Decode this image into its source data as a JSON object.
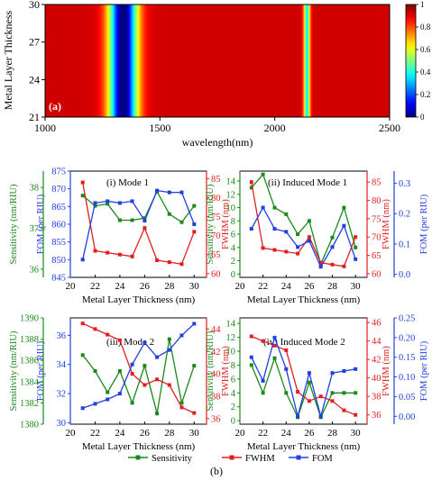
{
  "colors": {
    "sensitivity": "#1a8a1a",
    "fwhm": "#e02020",
    "fom": "#2040e0",
    "axis": "#000000"
  },
  "chart_data": [
    {
      "type": "heatmap",
      "panel_label": "(a)",
      "xlabel": "wavelength(nm)",
      "ylabel": "Metal Layer Thickness",
      "xticks": [
        "1000",
        "1500",
        "2000",
        "2500"
      ],
      "yticks": [
        "21",
        "24",
        "27",
        "30"
      ],
      "xlim": [
        1000,
        2500
      ],
      "ylim": [
        21,
        30
      ],
      "colorbar": {
        "ticks": [
          "1",
          "0.8",
          "0.6",
          "0.4",
          "0.2",
          "0"
        ],
        "range": [
          0,
          1
        ],
        "colormap": "jet"
      },
      "dips": [
        {
          "center_nm": 1340,
          "width_nm": 90,
          "depth": 0.95
        },
        {
          "center_nm": 2140,
          "width_nm": 20,
          "depth": 0.55
        }
      ]
    },
    {
      "type": "line",
      "panel_label": "(i) Mode 1",
      "xlabel": "Metal Layer Thickness (nm)",
      "x": [
        21,
        22,
        23,
        24,
        25,
        26,
        27,
        28,
        29,
        30
      ],
      "xlim": [
        20,
        31
      ],
      "xticks": [
        "20",
        "22",
        "24",
        "26",
        "28",
        "30"
      ],
      "axes": {
        "left_outer": {
          "label": "FOM (per RIU)",
          "series": "FOM",
          "range": [
            845,
            875
          ],
          "ticks": [
            "845",
            "850",
            "855",
            "860",
            "865",
            "870",
            "875"
          ]
        },
        "left_inner": {
          "label": "Sensitivity (nm/RIU)",
          "series": "Sensitivity",
          "range": [
            35.8,
            38.4
          ],
          "ticks": [
            "36",
            "37",
            "38"
          ]
        },
        "right": {
          "label": "FWHM (nm)",
          "series": "FWHM",
          "range": [
            59,
            87
          ],
          "ticks": [
            "60",
            "65",
            "70",
            "75",
            "80",
            "85"
          ]
        }
      },
      "series": [
        {
          "name": "Sensitivity",
          "values": [
            37.8,
            37.55,
            37.6,
            37.2,
            37.2,
            37.25,
            37.9,
            37.35,
            37.15,
            37.55
          ]
        },
        {
          "name": "FWHM",
          "values": [
            84,
            66,
            65.5,
            65,
            64.5,
            72,
            63.5,
            63,
            62.5,
            71
          ]
        },
        {
          "name": "FOM",
          "values": [
            850,
            866,
            866.5,
            866,
            866.5,
            861,
            869.5,
            869,
            869,
            860
          ]
        }
      ]
    },
    {
      "type": "line",
      "panel_label": "(ii) Induced Mode 1",
      "xlabel": "Metal Layer Thickness (nm)",
      "x": [
        21,
        22,
        23,
        24,
        25,
        26,
        27,
        28,
        29,
        30
      ],
      "xlim": [
        20,
        31
      ],
      "xticks": [
        "20",
        "22",
        "24",
        "26",
        "28",
        "30"
      ],
      "axes": {
        "left": {
          "label": "Sensitivity (nm/RIU)",
          "series": "Sensitivity",
          "range": [
            -0.5,
            15.5
          ],
          "ticks": [
            "0",
            "2",
            "4",
            "6",
            "8",
            "10",
            "12",
            "14"
          ]
        },
        "right": {
          "label": "FWHM (nm)",
          "series": "FWHM",
          "range": [
            59,
            88
          ],
          "ticks": [
            "60",
            "65",
            "70",
            "75",
            "80",
            "85"
          ]
        },
        "right_outer": {
          "label": "FOM (per RIU)",
          "series": "FOM",
          "range": [
            -0.01,
            0.34
          ],
          "ticks": [
            "0.0",
            "0.1",
            "0.2",
            "0.3"
          ]
        }
      },
      "series": [
        {
          "name": "Sensitivity",
          "values": [
            13,
            15,
            10,
            9,
            6,
            8,
            1.5,
            5.5,
            10,
            4
          ]
        },
        {
          "name": "FWHM",
          "values": [
            85,
            67,
            66.5,
            66,
            65.5,
            70,
            63,
            62.5,
            62,
            70
          ]
        },
        {
          "name": "FOM",
          "values": [
            0.15,
            0.22,
            0.15,
            0.14,
            0.09,
            0.11,
            0.025,
            0.09,
            0.16,
            0.05
          ]
        }
      ]
    },
    {
      "type": "line",
      "panel_label": "(iii) Mode 2",
      "xlabel": "Metal Layer Thickness (nm)",
      "x": [
        21,
        22,
        23,
        24,
        25,
        26,
        27,
        28,
        29,
        30
      ],
      "xlim": [
        20,
        31
      ],
      "xticks": [
        "20",
        "22",
        "24",
        "26",
        "28",
        "30"
      ],
      "axes": {
        "left_outer": {
          "label": "FOM (per RIU)",
          "series": "FOM",
          "range": [
            29.9,
            37.2
          ],
          "ticks": [
            "30",
            "32",
            "34",
            "36"
          ]
        },
        "left_inner": {
          "label": "Sensitivity (nm/RIU)",
          "series": "Sensitivity",
          "range": [
            1380,
            1390
          ],
          "ticks": [
            "1380",
            "1382",
            "1384",
            "1386",
            "1388",
            "1390"
          ]
        },
        "right": {
          "label": "FWHM (nm)",
          "series": "FWHM",
          "range": [
            35.5,
            45
          ],
          "ticks": [
            "36",
            "38",
            "40",
            "42",
            "44"
          ]
        }
      },
      "series": [
        {
          "name": "Sensitivity",
          "values": [
            1386.5,
            1385,
            1383,
            1385,
            1382,
            1385.5,
            1381,
            1388,
            1382,
            1385.5
          ]
        },
        {
          "name": "FWHM",
          "values": [
            44.5,
            44,
            43.5,
            43,
            40,
            39,
            39.5,
            39,
            37,
            36.5
          ]
        },
        {
          "name": "FOM",
          "values": [
            31,
            31.3,
            31.6,
            32,
            34,
            35.5,
            34.5,
            35,
            36,
            36.8
          ]
        }
      ]
    },
    {
      "type": "line",
      "panel_label": "(iv) Induced Mode 2",
      "xlabel": "Metal Layer Thickness (nm)",
      "x": [
        21,
        22,
        23,
        24,
        25,
        26,
        27,
        28,
        29,
        30
      ],
      "xlim": [
        20,
        31
      ],
      "xticks": [
        "20",
        "22",
        "24",
        "26",
        "28",
        "30"
      ],
      "axes": {
        "left": {
          "label": "Sensitivity (nm/RIU)",
          "series": "Sensitivity",
          "range": [
            -0.5,
            14.8
          ],
          "ticks": [
            "0",
            "2",
            "4",
            "6",
            "8",
            "10",
            "12",
            "14"
          ]
        },
        "right": {
          "label": "FWHM (nm)",
          "series": "FWHM",
          "range": [
            35,
            46.5
          ],
          "ticks": [
            "36",
            "38",
            "40",
            "42",
            "44",
            "46"
          ]
        },
        "right_outer": {
          "label": "FOM (per RIU)",
          "series": "FOM",
          "range": [
            -0.02,
            0.25
          ],
          "ticks": [
            "0.00",
            "0.05",
            "0.10",
            "0.15",
            "0.20",
            "0.25"
          ]
        }
      },
      "series": [
        {
          "name": "Sensitivity",
          "values": [
            8,
            4,
            9,
            4,
            0.5,
            5.5,
            0.5,
            4,
            4,
            4
          ]
        },
        {
          "name": "FWHM",
          "values": [
            44.5,
            44,
            43.5,
            43,
            38.5,
            37.5,
            38,
            37.5,
            36.5,
            36
          ]
        },
        {
          "name": "FOM",
          "values": [
            0.15,
            0.09,
            0.2,
            0.12,
            0,
            0.11,
            0,
            0.11,
            0.115,
            0.12
          ]
        }
      ]
    }
  ],
  "legend": {
    "items": [
      {
        "label": "Sensitivity",
        "color": "#1a8a1a"
      },
      {
        "label": "FWHM",
        "color": "#e02020"
      },
      {
        "label": "FOM",
        "color": "#2040e0"
      }
    ]
  },
  "figure_label": "(b)"
}
